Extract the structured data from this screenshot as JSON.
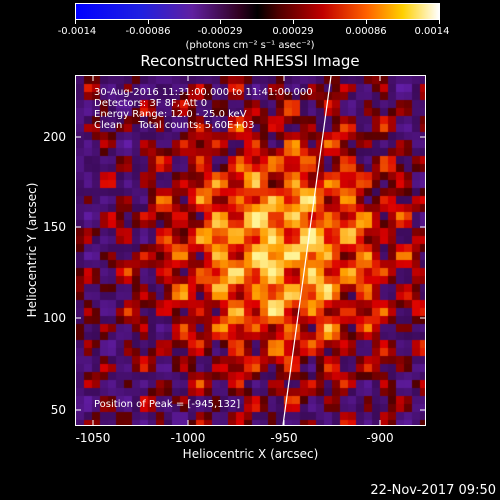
{
  "colorbar": {
    "ticks": [
      "-0.0014",
      "-0.00086",
      "-0.00029",
      "0.00029",
      "0.00086",
      "0.0014"
    ],
    "units": "(photons cm⁻² s⁻¹ asec⁻²)"
  },
  "title": "Reconstructed RHESSI Image",
  "info": {
    "line1": "30-Aug-2016 11:31:00.000 to 11:41:00.000",
    "line2": "Detectors: 3F 8F, Att 0",
    "line3": "Energy Range: 12.0 - 25.0 keV",
    "line4": "Clean     Total counts: 5.60E+03",
    "peak": "Position of Peak = [-945,132]"
  },
  "axes": {
    "xlabel": "Heliocentric X (arcsec)",
    "ylabel": "Heliocentric Y (arcsec)",
    "xticks": [
      "-1050",
      "-1000",
      "-950",
      "-900"
    ],
    "yticks": [
      "50",
      "100",
      "150",
      "200"
    ]
  },
  "timestamp": "22-Nov-2017 09:50",
  "colors": {
    "background": "#000000",
    "text": "#ffffff"
  }
}
